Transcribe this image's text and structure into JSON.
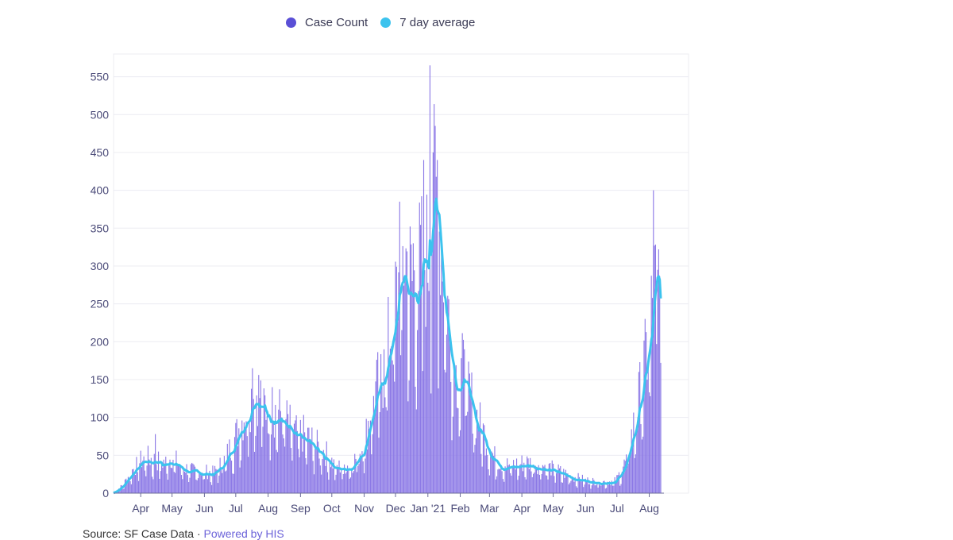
{
  "legend": {
    "items": [
      {
        "label": "Case Count",
        "color": "#5a4fd6"
      },
      {
        "label": "7 day average",
        "color": "#3cc3ee"
      }
    ]
  },
  "source": {
    "prefix": "Source: SF Case Data ·",
    "link_text": "Powered by HIS"
  },
  "chart_data": {
    "type": "bar",
    "colors": {
      "bars": "#8b78e6",
      "line": "#3cc3ee",
      "axis_text": "#4a4a78",
      "grid": "#ececf2"
    },
    "x": {
      "ticks": [
        "Apr",
        "May",
        "Jun",
        "Jul",
        "Aug",
        "Sep",
        "Oct",
        "Nov",
        "Dec",
        "Jan '21",
        "Feb",
        "Mar",
        "Apr",
        "May",
        "Jun",
        "Jul",
        "Aug"
      ]
    },
    "y": {
      "ticks": [
        0,
        50,
        100,
        150,
        200,
        250,
        300,
        350,
        400,
        450,
        500,
        550
      ],
      "range": [
        0,
        580
      ]
    },
    "daily_anchors": [
      [
        "2020-03-06",
        0
      ],
      [
        "2020-03-15",
        10
      ],
      [
        "2020-03-25",
        30
      ],
      [
        "2020-04-05",
        45
      ],
      [
        "2020-04-15",
        40
      ],
      [
        "2020-04-25",
        38
      ],
      [
        "2020-05-01",
        45
      ],
      [
        "2020-05-10",
        33
      ],
      [
        "2020-05-20",
        28
      ],
      [
        "2020-06-01",
        27
      ],
      [
        "2020-06-10",
        25
      ],
      [
        "2020-06-20",
        40
      ],
      [
        "2020-07-01",
        70
      ],
      [
        "2020-07-10",
        100
      ],
      [
        "2020-07-20",
        130
      ],
      [
        "2020-07-31",
        105
      ],
      [
        "2020-08-15",
        98
      ],
      [
        "2020-08-25",
        75
      ],
      [
        "2020-09-05",
        72
      ],
      [
        "2020-09-15",
        60
      ],
      [
        "2020-09-25",
        50
      ],
      [
        "2020-10-05",
        32
      ],
      [
        "2020-10-20",
        35
      ],
      [
        "2020-11-01",
        60
      ],
      [
        "2020-11-10",
        120
      ],
      [
        "2020-11-20",
        150
      ],
      [
        "2020-11-30",
        230
      ],
      [
        "2020-12-10",
        295
      ],
      [
        "2020-12-18",
        250
      ],
      [
        "2020-12-25",
        280
      ],
      [
        "2021-01-01",
        290
      ],
      [
        "2021-01-08",
        370
      ],
      [
        "2021-01-15",
        300
      ],
      [
        "2021-01-22",
        200
      ],
      [
        "2021-01-28",
        145
      ],
      [
        "2021-02-05",
        150
      ],
      [
        "2021-02-15",
        100
      ],
      [
        "2021-02-25",
        70
      ],
      [
        "2021-03-05",
        45
      ],
      [
        "2021-03-15",
        35
      ],
      [
        "2021-03-25",
        35
      ],
      [
        "2021-04-05",
        38
      ],
      [
        "2021-04-20",
        35
      ],
      [
        "2021-05-05",
        28
      ],
      [
        "2021-05-20",
        20
      ],
      [
        "2021-06-05",
        15
      ],
      [
        "2021-06-20",
        14
      ],
      [
        "2021-06-30",
        15
      ],
      [
        "2021-07-10",
        40
      ],
      [
        "2021-07-20",
        100
      ],
      [
        "2021-07-30",
        175
      ],
      [
        "2021-08-04",
        230
      ],
      [
        "2021-08-08",
        270
      ],
      [
        "2021-08-10",
        265
      ],
      [
        "2021-08-12",
        235
      ]
    ],
    "spikes": [
      [
        "2020-04-15",
        78
      ],
      [
        "2020-07-17",
        165
      ],
      [
        "2020-08-05",
        140
      ],
      [
        "2020-11-20",
        190
      ],
      [
        "2020-12-05",
        385
      ],
      [
        "2020-12-18",
        330
      ],
      [
        "2020-12-28",
        440
      ],
      [
        "2021-01-03",
        565
      ],
      [
        "2021-01-06",
        450
      ],
      [
        "2021-01-10",
        440
      ],
      [
        "2021-01-27",
        160
      ],
      [
        "2021-02-05",
        190
      ],
      [
        "2021-08-05",
        400
      ],
      [
        "2021-08-09",
        295
      ]
    ]
  }
}
